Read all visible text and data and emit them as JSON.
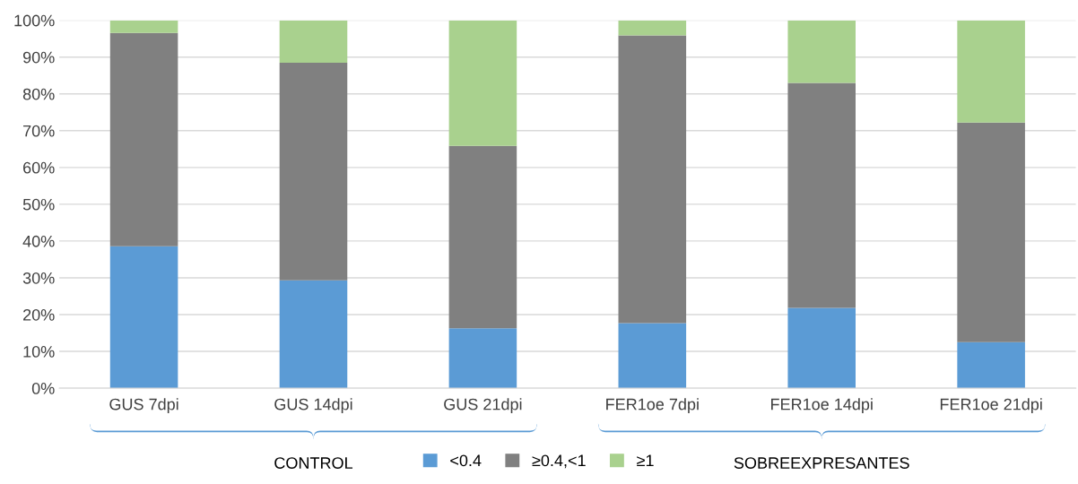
{
  "chart_data": {
    "type": "bar",
    "stacked": true,
    "categories": [
      "GUS 7dpi",
      "GUS 14dpi",
      "GUS 21dpi",
      "FER1oe 7dpi",
      "FER1oe 14dpi",
      "FER1oe 21dpi"
    ],
    "series": [
      {
        "name": "<0.4",
        "color": "#5b9bd5",
        "values": [
          38.6,
          29.3,
          16.3,
          17.7,
          21.8,
          12.5
        ]
      },
      {
        "name": "≥0.4,<1",
        "color": "#808080",
        "values": [
          58.0,
          59.2,
          49.6,
          78.2,
          61.2,
          59.7
        ]
      },
      {
        "name": "≥1",
        "color": "#a9d18e",
        "values": [
          3.4,
          11.5,
          34.1,
          4.1,
          17.0,
          27.8
        ]
      }
    ],
    "ylim": [
      0,
      100
    ],
    "yticks": [
      {
        "value": 0,
        "label": "0%"
      },
      {
        "value": 10,
        "label": "10%"
      },
      {
        "value": 20,
        "label": "20%"
      },
      {
        "value": 30,
        "label": "30%"
      },
      {
        "value": 40,
        "label": "40%"
      },
      {
        "value": 50,
        "label": "50%"
      },
      {
        "value": 60,
        "label": "60%"
      },
      {
        "value": 70,
        "label": "70%"
      },
      {
        "value": 80,
        "label": "80%"
      },
      {
        "value": 90,
        "label": "90%"
      },
      {
        "value": 100,
        "label": "100%"
      }
    ],
    "grid": "y",
    "legend": "bottom",
    "annotations": [
      "CONTROL",
      "SOBREEXPRESANTES"
    ]
  }
}
